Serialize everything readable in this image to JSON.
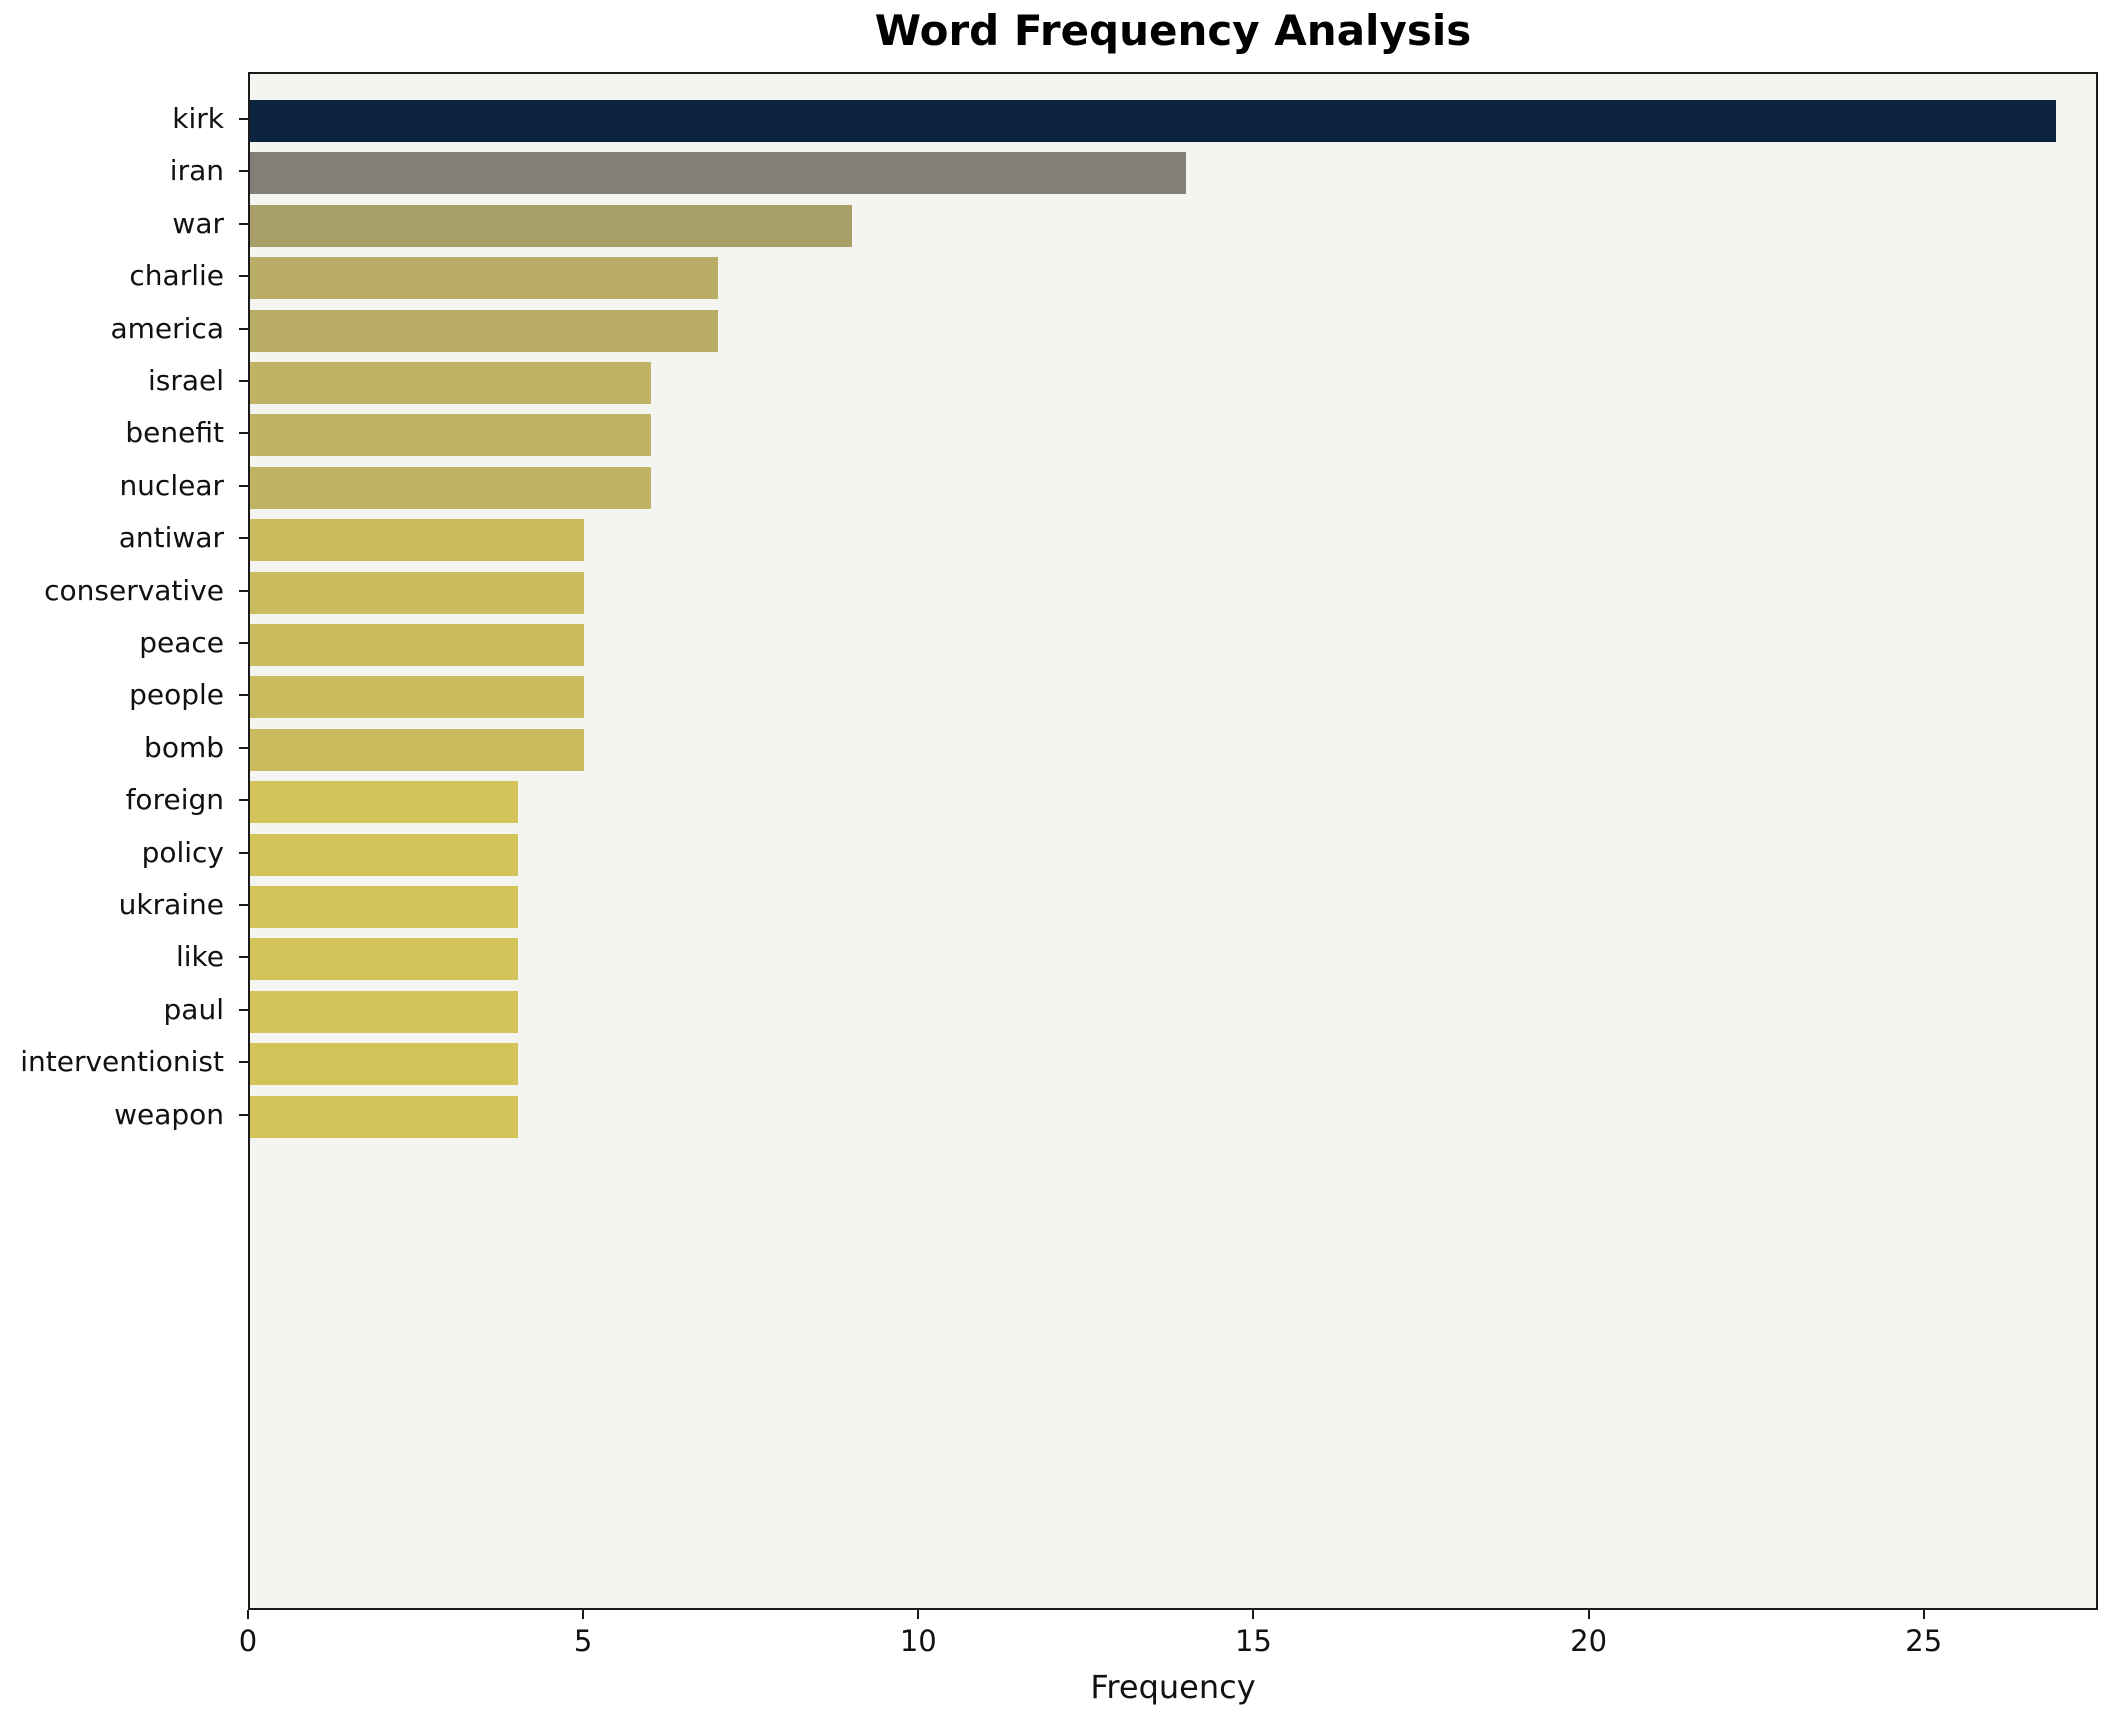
{
  "title": "Word Frequency Analysis",
  "chart_data": {
    "type": "bar",
    "orientation": "horizontal",
    "title": "Word Frequency Analysis",
    "xlabel": "Frequency",
    "ylabel": "",
    "categories": [
      "kirk",
      "iran",
      "war",
      "charlie",
      "america",
      "israel",
      "benefit",
      "nuclear",
      "antiwar",
      "conservative",
      "peace",
      "people",
      "bomb",
      "foreign",
      "policy",
      "ukraine",
      "like",
      "paul",
      "interventionist",
      "weapon"
    ],
    "values": [
      27,
      14,
      9,
      7,
      7,
      6,
      6,
      6,
      5,
      5,
      5,
      5,
      5,
      4,
      4,
      4,
      4,
      4,
      4,
      4
    ],
    "colors": [
      "#0c2340",
      "#827f77",
      "#a89f68",
      "#b8ac66",
      "#b8ac66",
      "#c0b363",
      "#c0b363",
      "#c0b363",
      "#c9bb5e",
      "#c9bb5e",
      "#c9bb5e",
      "#c9bb5e",
      "#c9bb5e",
      "#d3c459",
      "#d3c459",
      "#d3c459",
      "#d3c459",
      "#d3c459",
      "#d3c459",
      "#d3c459"
    ],
    "x_ticks": [
      "0",
      "5",
      "10",
      "15",
      "20",
      "25"
    ],
    "x_tick_values": [
      0,
      5,
      10,
      15,
      20,
      25
    ],
    "xlim": [
      0,
      27.6
    ],
    "grid": false,
    "legend": false,
    "plot_background": "#f4f4f1",
    "figure_background": "#ffffff"
  }
}
